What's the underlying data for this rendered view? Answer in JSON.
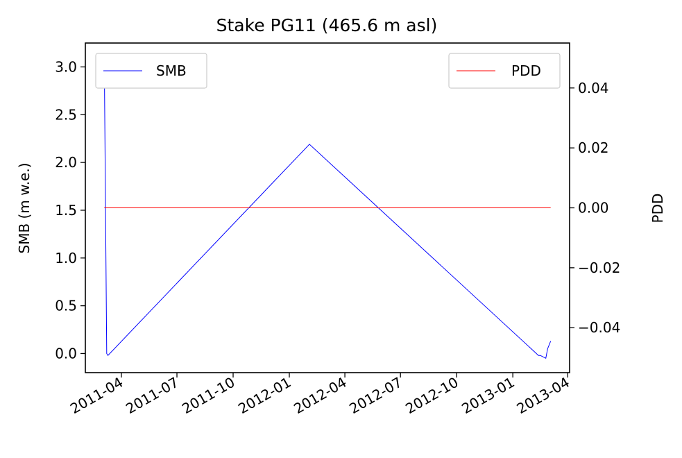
{
  "chart_data": {
    "type": "line",
    "title": "Stake PG11 (465.6 m asl)",
    "ylabel": "SMB (m w.e.)",
    "y2label": "PDD",
    "ylim": [
      -0.2,
      3.25
    ],
    "y2lim": [
      -0.055,
      0.055
    ],
    "xlim": [
      "2011-02-01",
      "2013-04-04"
    ],
    "yticks": [
      {
        "v": 0.0,
        "label": "0.0"
      },
      {
        "v": 0.5,
        "label": "0.5"
      },
      {
        "v": 1.0,
        "label": "1.0"
      },
      {
        "v": 1.5,
        "label": "1.5"
      },
      {
        "v": 2.0,
        "label": "2.0"
      },
      {
        "v": 2.5,
        "label": "2.5"
      },
      {
        "v": 3.0,
        "label": "3.0"
      }
    ],
    "y2ticks": [
      {
        "v": 0.04,
        "label": "0.04"
      },
      {
        "v": 0.02,
        "label": "0.02"
      },
      {
        "v": 0.0,
        "label": "0.00"
      },
      {
        "v": -0.02,
        "label": "−0.02"
      },
      {
        "v": -0.04,
        "label": "−0.04"
      }
    ],
    "xticks": [
      {
        "date": "2011-04-01",
        "label": "2011-04"
      },
      {
        "date": "2011-07-01",
        "label": "2011-07"
      },
      {
        "date": "2011-10-01",
        "label": "2011-10"
      },
      {
        "date": "2012-01-01",
        "label": "2012-01"
      },
      {
        "date": "2012-04-01",
        "label": "2012-04"
      },
      {
        "date": "2012-07-01",
        "label": "2012-07"
      },
      {
        "date": "2012-10-01",
        "label": "2012-10"
      },
      {
        "date": "2013-01-01",
        "label": "2013-01"
      },
      {
        "date": "2013-04-01",
        "label": "2013-04"
      }
    ],
    "series": [
      {
        "name": "SMB",
        "axis": "left",
        "color": "#0000ff",
        "x": [
          "2011-03-04",
          "2011-03-08",
          "2011-03-10",
          "2012-02-03",
          "2013-02-12",
          "2013-02-15",
          "2013-02-18",
          "2013-02-24",
          "2013-02-27",
          "2013-03-04"
        ],
        "y": [
          3.1,
          0.0,
          -0.02,
          2.19,
          -0.02,
          -0.02,
          -0.03,
          -0.05,
          0.05,
          0.13
        ]
      },
      {
        "name": "PDD",
        "axis": "right",
        "color": "#ff0000",
        "x": [
          "2011-03-04",
          "2013-03-04"
        ],
        "y": [
          0.0,
          0.0
        ]
      }
    ],
    "legends": [
      {
        "label": "SMB",
        "placement": "top-left",
        "color": "#0000ff"
      },
      {
        "label": "PDD",
        "placement": "top-right",
        "color": "#ff0000"
      }
    ],
    "grid": false
  }
}
